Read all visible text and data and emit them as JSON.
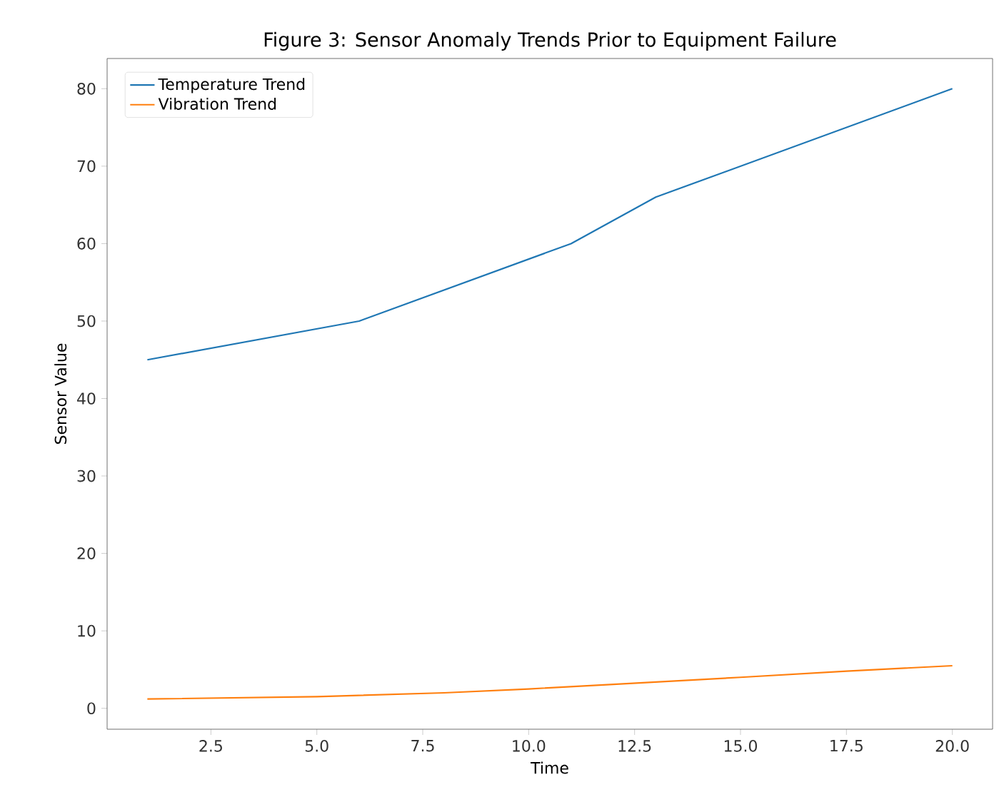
{
  "chart_data": {
    "type": "line",
    "title": "Figure 3: Sensor Anomaly Trends Prior to Equipment Failure",
    "xlabel": "Time",
    "ylabel": "Sensor Value",
    "xlim": [
      0.05,
      20.95
    ],
    "ylim": [
      -2.7,
      83.9
    ],
    "xticks": [
      {
        "value": 2.5,
        "label": "2.5"
      },
      {
        "value": 5,
        "label": "5.0"
      },
      {
        "value": 7.5,
        "label": "7.5"
      },
      {
        "value": 10,
        "label": "10.0"
      },
      {
        "value": 12.5,
        "label": "12.5"
      },
      {
        "value": 15,
        "label": "15.0"
      },
      {
        "value": 17.5,
        "label": "17.5"
      },
      {
        "value": 20,
        "label": "20.0"
      }
    ],
    "yticks": [
      0,
      10,
      20,
      30,
      40,
      50,
      60,
      70,
      80
    ],
    "series": [
      {
        "name": "Temperature Trend",
        "color": "#1f77b4",
        "x": [
          1,
          6,
          11,
          13,
          20
        ],
        "values": [
          45,
          50,
          60,
          66,
          80
        ]
      },
      {
        "name": "Vibration Trend",
        "color": "#ff7f0e",
        "x": [
          1,
          5,
          8,
          10,
          12,
          15,
          17.5,
          20
        ],
        "values": [
          1.2,
          1.5,
          2.0,
          2.5,
          3.1,
          4.0,
          4.8,
          5.5
        ]
      }
    ],
    "legend": "top left",
    "grid": false,
    "marker": "none",
    "line_style": "solid"
  }
}
